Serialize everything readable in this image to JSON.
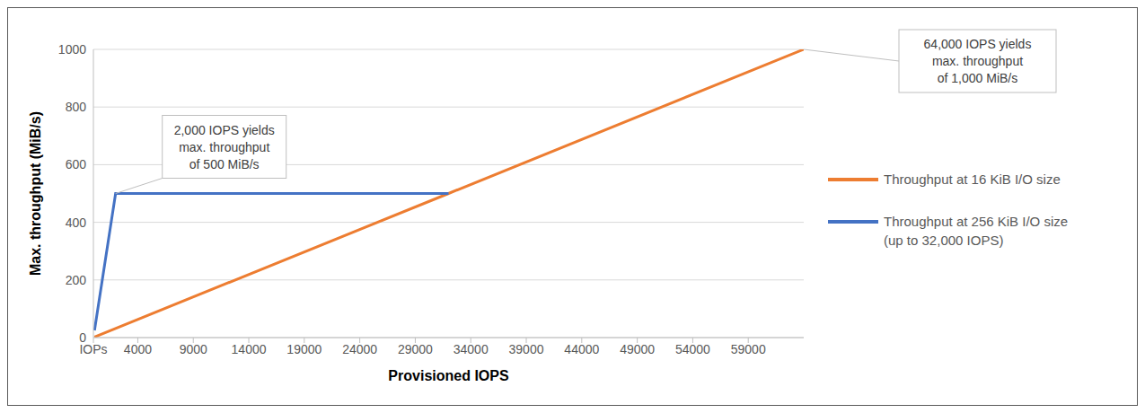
{
  "chart_data": {
    "type": "line",
    "x_label": "Provisioned IOPS",
    "y_label": "Max. throughput (MiB/s)",
    "xlim": [
      0,
      64000
    ],
    "xticks": [
      {
        "value": 0,
        "label": "IOPs"
      },
      4000,
      9000,
      14000,
      19000,
      24000,
      29000,
      34000,
      39000,
      44000,
      49000,
      54000,
      59000
    ],
    "ylim": [
      0,
      1000
    ],
    "yticks": [
      0,
      200,
      400,
      600,
      800,
      1000
    ],
    "grid": true,
    "legend": "right",
    "series": [
      {
        "name": "Throughput at 16 KiB I/O size",
        "color": "#ed7d31",
        "x": [
          100,
          32000,
          64000
        ],
        "values": [
          2,
          500,
          1000
        ]
      },
      {
        "name": "Throughput at 256 KiB I/O size (up to 32,000 IOPS)",
        "color": "#4472c4",
        "x": [
          100,
          2000,
          32000
        ],
        "values": [
          25,
          500,
          500
        ]
      }
    ],
    "annotations": [
      {
        "x": 2000,
        "y": 500,
        "lines": [
          "2,000 IOPS yields",
          "max. throughput",
          "of 500 MiB/s"
        ]
      },
      {
        "x": 64000,
        "y": 1000,
        "lines": [
          "64,000 IOPS yields",
          "max. throughput",
          "of 1,000 MiB/s"
        ]
      }
    ]
  }
}
